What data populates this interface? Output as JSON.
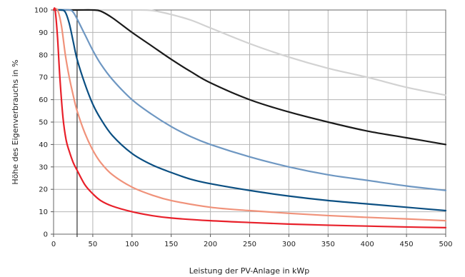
{
  "chart_data": {
    "type": "line",
    "title": "",
    "xlabel": "Leistung der PV-Anlage in kWp",
    "ylabel": "Höhe des Eigenverbrauchs in %",
    "xlim": [
      0,
      500
    ],
    "ylim": [
      0,
      100
    ],
    "xticks": [
      0,
      50,
      100,
      150,
      200,
      250,
      300,
      350,
      400,
      450,
      500
    ],
    "yticks": [
      0,
      10,
      20,
      30,
      40,
      50,
      60,
      70,
      80,
      90,
      100
    ],
    "grid": true,
    "marker_line": {
      "x": 30
    },
    "series": [
      {
        "color": "#e8202a",
        "points": [
          [
            0,
            100
          ],
          [
            2,
            100
          ],
          [
            5,
            88
          ],
          [
            8,
            70
          ],
          [
            12,
            52
          ],
          [
            16,
            42
          ],
          [
            20,
            37
          ],
          [
            25,
            32
          ],
          [
            30,
            28.5
          ],
          [
            40,
            22
          ],
          [
            50,
            18
          ],
          [
            60,
            15
          ],
          [
            75,
            12.5
          ],
          [
            100,
            10
          ],
          [
            125,
            8.3
          ],
          [
            150,
            7.2
          ],
          [
            200,
            6
          ],
          [
            250,
            5.2
          ],
          [
            300,
            4.5
          ],
          [
            350,
            4
          ],
          [
            400,
            3.6
          ],
          [
            450,
            3.2
          ],
          [
            500,
            2.9
          ]
        ]
      },
      {
        "color": "#f0927a",
        "points": [
          [
            0,
            100
          ],
          [
            5,
            100
          ],
          [
            10,
            93
          ],
          [
            15,
            80
          ],
          [
            20,
            70
          ],
          [
            25,
            62
          ],
          [
            30,
            55
          ],
          [
            40,
            45
          ],
          [
            50,
            37.5
          ],
          [
            60,
            32
          ],
          [
            75,
            26.5
          ],
          [
            100,
            21
          ],
          [
            125,
            17.5
          ],
          [
            150,
            15
          ],
          [
            200,
            12
          ],
          [
            250,
            10.5
          ],
          [
            300,
            9.3
          ],
          [
            350,
            8.3
          ],
          [
            400,
            7.5
          ],
          [
            450,
            6.8
          ],
          [
            500,
            6
          ]
        ]
      },
      {
        "color": "#0b4f82",
        "points": [
          [
            0,
            100
          ],
          [
            10,
            100
          ],
          [
            15,
            99
          ],
          [
            20,
            94
          ],
          [
            25,
            86
          ],
          [
            30,
            78
          ],
          [
            40,
            67
          ],
          [
            50,
            58
          ],
          [
            60,
            51.5
          ],
          [
            75,
            44
          ],
          [
            100,
            36
          ],
          [
            125,
            31
          ],
          [
            150,
            27.5
          ],
          [
            175,
            24.5
          ],
          [
            200,
            22.5
          ],
          [
            250,
            19.5
          ],
          [
            300,
            17
          ],
          [
            350,
            15
          ],
          [
            400,
            13.5
          ],
          [
            450,
            12
          ],
          [
            500,
            10.5
          ]
        ]
      },
      {
        "color": "#6e97c2",
        "points": [
          [
            0,
            100
          ],
          [
            20,
            100
          ],
          [
            25,
            99
          ],
          [
            30,
            96
          ],
          [
            40,
            89
          ],
          [
            50,
            82
          ],
          [
            60,
            76
          ],
          [
            75,
            69
          ],
          [
            100,
            60
          ],
          [
            125,
            53.5
          ],
          [
            150,
            48
          ],
          [
            175,
            43.5
          ],
          [
            200,
            40
          ],
          [
            250,
            34.5
          ],
          [
            300,
            30
          ],
          [
            350,
            26.5
          ],
          [
            400,
            24
          ],
          [
            450,
            21.5
          ],
          [
            500,
            19.5
          ]
        ]
      },
      {
        "color": "#1a1a1a",
        "points": [
          [
            0,
            100
          ],
          [
            30,
            100
          ],
          [
            50,
            100
          ],
          [
            60,
            99.5
          ],
          [
            75,
            96.5
          ],
          [
            100,
            90
          ],
          [
            125,
            84
          ],
          [
            150,
            78
          ],
          [
            175,
            72.5
          ],
          [
            200,
            67.5
          ],
          [
            250,
            60
          ],
          [
            300,
            54.5
          ],
          [
            350,
            50
          ],
          [
            400,
            46
          ],
          [
            450,
            43
          ],
          [
            500,
            40
          ]
        ]
      },
      {
        "color": "#d2d2d2",
        "points": [
          [
            0,
            100
          ],
          [
            50,
            100
          ],
          [
            100,
            100
          ],
          [
            125,
            99.8
          ],
          [
            150,
            98
          ],
          [
            175,
            95.5
          ],
          [
            200,
            92
          ],
          [
            250,
            85
          ],
          [
            300,
            79
          ],
          [
            350,
            74
          ],
          [
            400,
            70
          ],
          [
            450,
            65.5
          ],
          [
            500,
            62
          ]
        ]
      }
    ]
  }
}
